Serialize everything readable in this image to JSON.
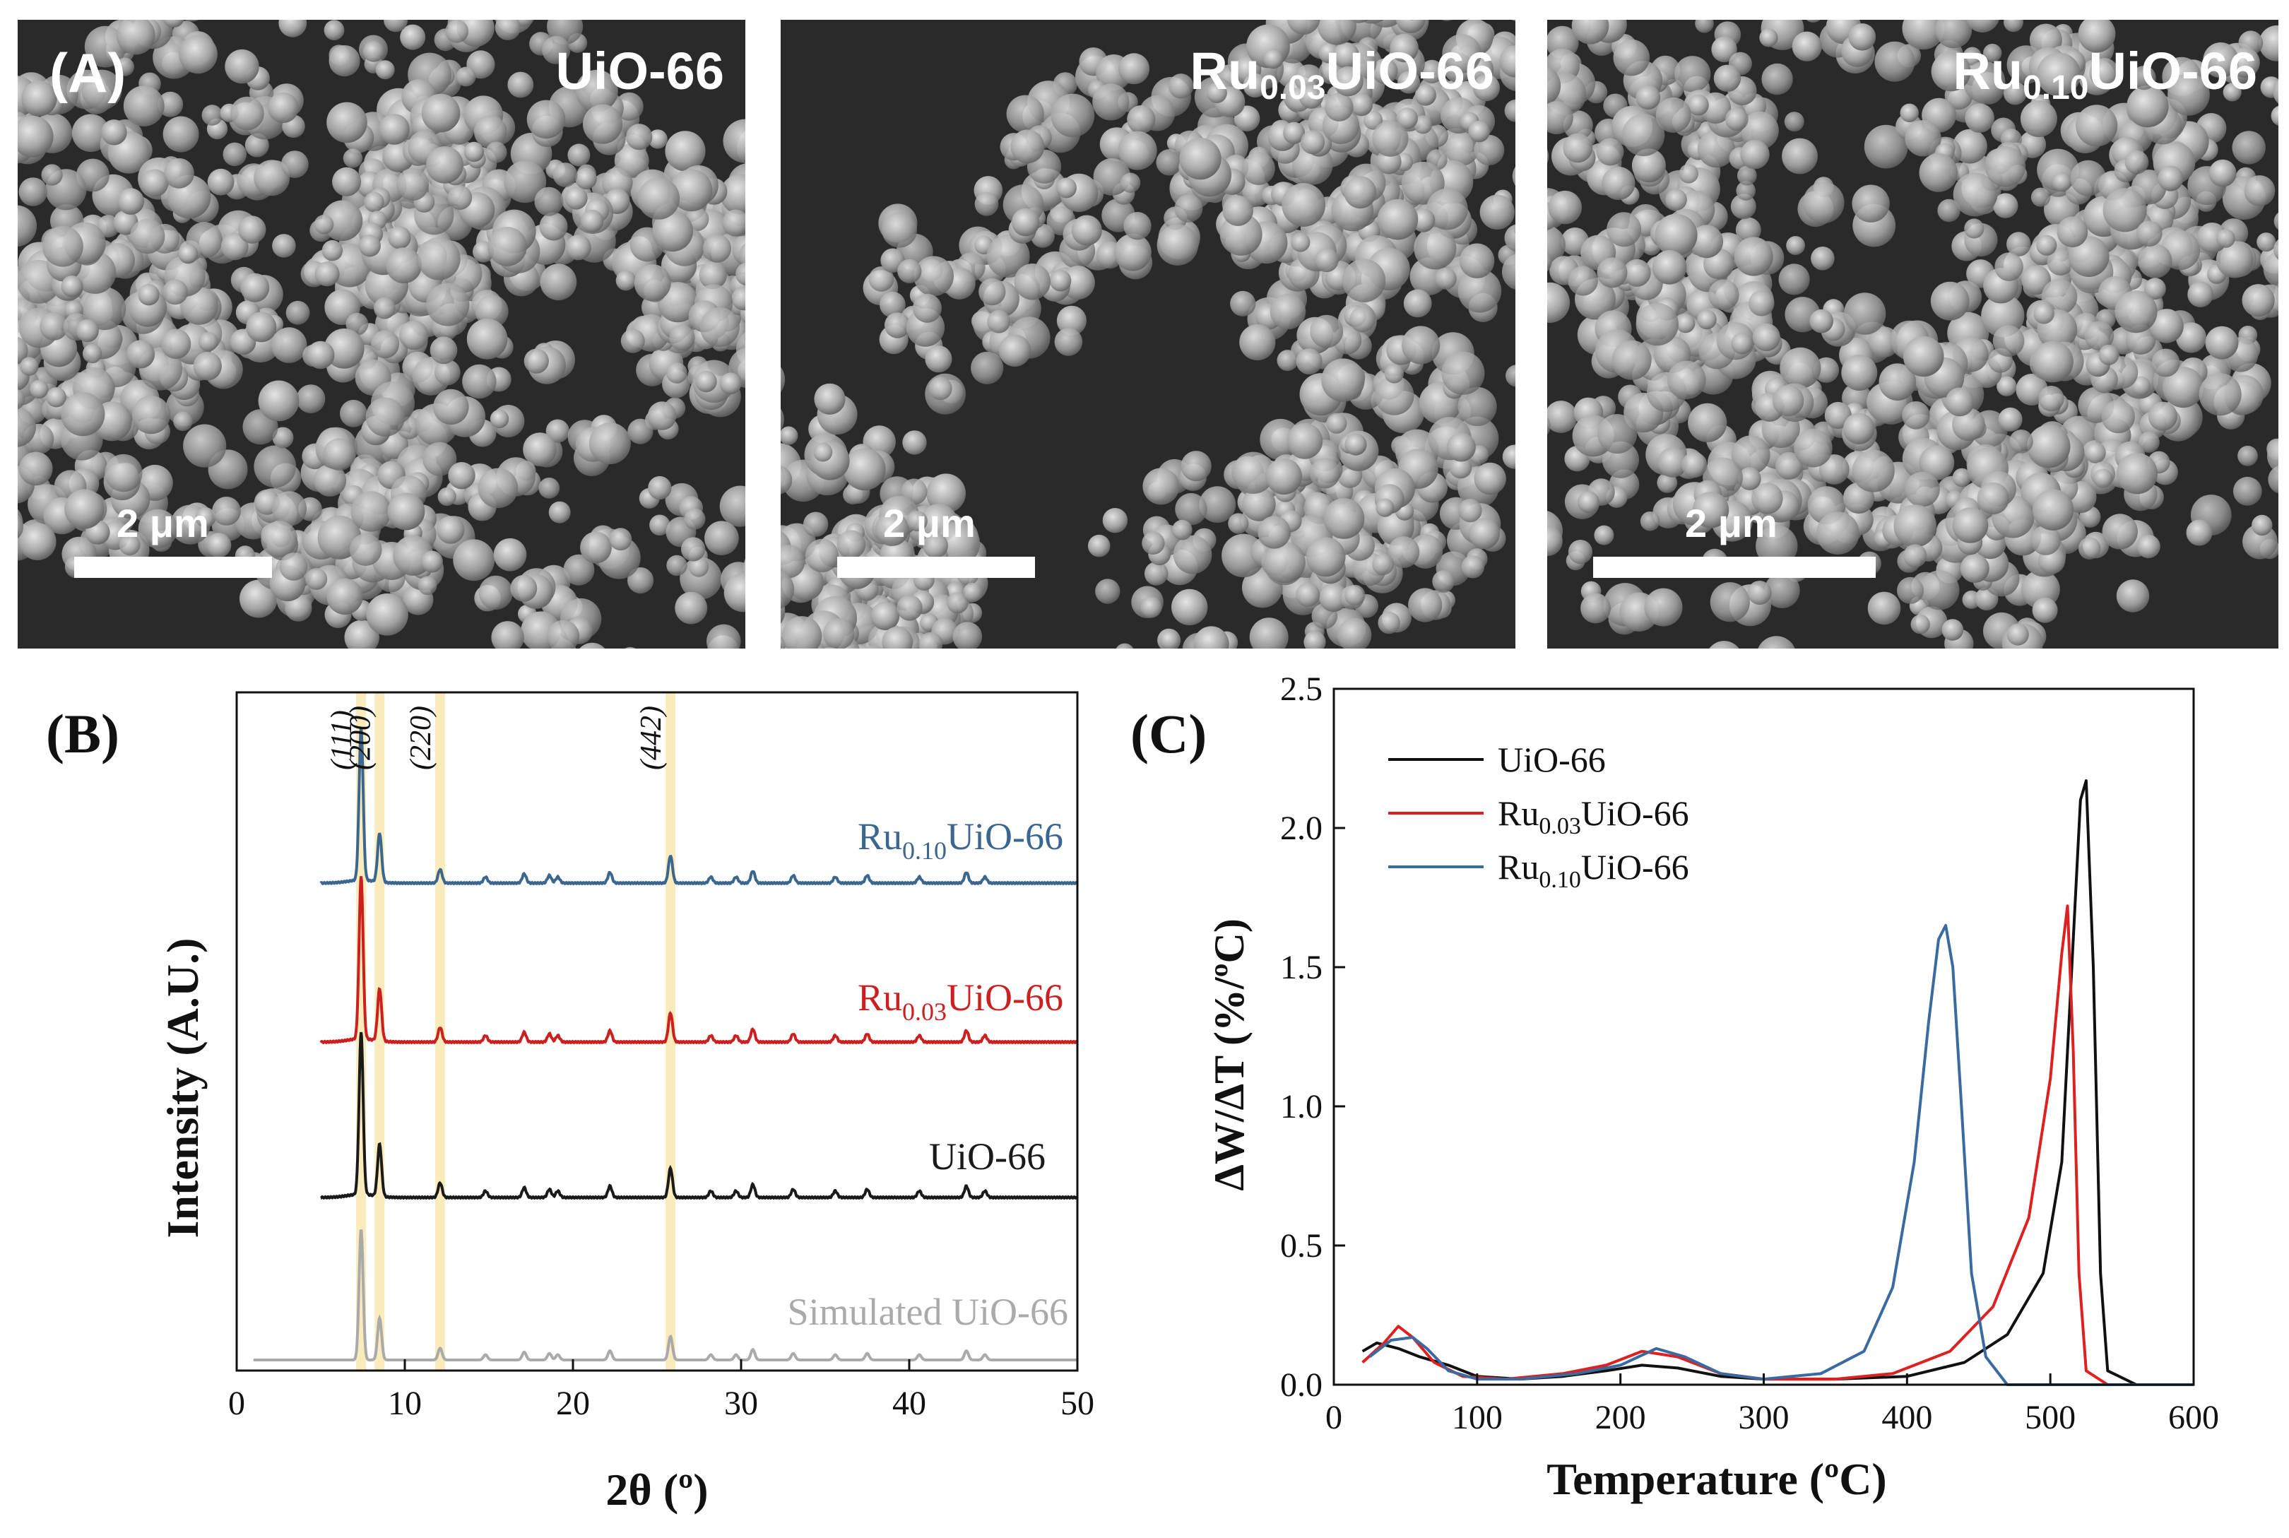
{
  "panel_a": {
    "letter": "(A)",
    "images": [
      {
        "title": "UiO-66",
        "title_sub": "",
        "title_suffix": "",
        "scale_label": "2 μm"
      },
      {
        "title": "Ru",
        "title_sub": "0.03",
        "title_suffix": "UiO-66",
        "scale_label": "2 μm"
      },
      {
        "title": "Ru",
        "title_sub": "0.10",
        "title_suffix": "UiO-66",
        "scale_label": "2 μm"
      }
    ]
  },
  "chart_data": [
    {
      "panel": "(B)",
      "type": "line",
      "xlabel": "2θ (º)",
      "ylabel": "Intensity (A.U.)",
      "xlim": [
        0,
        50
      ],
      "xticks": [
        0,
        10,
        20,
        30,
        40,
        50
      ],
      "reflections": [
        {
          "label": "(111)",
          "x": 7.4
        },
        {
          "label": "(200)",
          "x": 8.5
        },
        {
          "label": "(220)",
          "x": 12.1
        },
        {
          "label": "(442)",
          "x": 25.8
        }
      ],
      "series": [
        {
          "name": "Simulated UiO-66",
          "color": "#aaaaaa",
          "x_start": 1
        },
        {
          "name": "UiO-66",
          "color": "#1a1a1a",
          "x_start": 5
        },
        {
          "name": "Ru0.03UiO-66",
          "name_base": "Ru",
          "name_sub": "0.03",
          "name_suffix": "UiO-66",
          "color": "#cc1f1f",
          "x_start": 5
        },
        {
          "name": "Ru0.10UiO-66",
          "name_base": "Ru",
          "name_sub": "0.10",
          "name_suffix": "UiO-66",
          "color": "#3a6690",
          "x_start": 5
        }
      ],
      "peaks": [
        {
          "x": 7.4,
          "h": 1.0
        },
        {
          "x": 8.5,
          "h": 0.32
        },
        {
          "x": 12.1,
          "h": 0.09
        },
        {
          "x": 14.8,
          "h": 0.04
        },
        {
          "x": 17.1,
          "h": 0.06
        },
        {
          "x": 18.6,
          "h": 0.05
        },
        {
          "x": 19.1,
          "h": 0.04
        },
        {
          "x": 22.2,
          "h": 0.07
        },
        {
          "x": 25.8,
          "h": 0.18
        },
        {
          "x": 28.2,
          "h": 0.04
        },
        {
          "x": 29.7,
          "h": 0.04
        },
        {
          "x": 30.7,
          "h": 0.08
        },
        {
          "x": 33.1,
          "h": 0.05
        },
        {
          "x": 35.6,
          "h": 0.04
        },
        {
          "x": 37.5,
          "h": 0.05
        },
        {
          "x": 40.6,
          "h": 0.04
        },
        {
          "x": 43.4,
          "h": 0.07
        },
        {
          "x": 44.5,
          "h": 0.04
        }
      ]
    },
    {
      "panel": "(C)",
      "type": "line",
      "xlabel": "Temperature (ºC)",
      "ylabel": "ΔW/ΔT (%/ºC)",
      "xlim": [
        0,
        600
      ],
      "ylim": [
        0,
        2.5
      ],
      "xticks": [
        0,
        100,
        200,
        300,
        400,
        500,
        600
      ],
      "yticks": [
        "0.0",
        "0.5",
        "1.0",
        "1.5",
        "2.0",
        "2.5"
      ],
      "legend_position": "top-left",
      "series": [
        {
          "name": "UiO-66",
          "color": "#111111",
          "x": [
            20,
            30,
            45,
            60,
            80,
            100,
            130,
            160,
            190,
            215,
            240,
            270,
            300,
            350,
            400,
            440,
            470,
            495,
            508,
            515,
            521,
            525,
            530,
            535,
            540,
            560,
            600
          ],
          "y": [
            0.12,
            0.15,
            0.13,
            0.1,
            0.07,
            0.03,
            0.02,
            0.03,
            0.05,
            0.07,
            0.06,
            0.03,
            0.02,
            0.02,
            0.03,
            0.08,
            0.18,
            0.4,
            0.8,
            1.5,
            2.1,
            2.17,
            1.5,
            0.4,
            0.05,
            0.0,
            0.0
          ]
        },
        {
          "name": "Ru0.03UiO-66",
          "name_base": "Ru",
          "name_sub": "0.03",
          "name_suffix": "UiO-66",
          "color": "#dd2020",
          "x": [
            20,
            35,
            45,
            55,
            70,
            90,
            120,
            160,
            190,
            215,
            240,
            270,
            300,
            350,
            390,
            430,
            460,
            485,
            500,
            508,
            512,
            516,
            520,
            525,
            540,
            600
          ],
          "y": [
            0.08,
            0.15,
            0.21,
            0.17,
            0.08,
            0.03,
            0.02,
            0.04,
            0.07,
            0.12,
            0.1,
            0.04,
            0.02,
            0.02,
            0.04,
            0.12,
            0.28,
            0.6,
            1.1,
            1.55,
            1.72,
            1.2,
            0.4,
            0.05,
            0.0,
            0.0
          ]
        },
        {
          "name": "Ru0.10UiO-66",
          "name_base": "Ru",
          "name_sub": "0.10",
          "name_suffix": "UiO-66",
          "color": "#3a6aa0",
          "x": [
            25,
            40,
            55,
            65,
            80,
            100,
            130,
            170,
            200,
            225,
            245,
            270,
            300,
            340,
            370,
            390,
            405,
            415,
            422,
            427,
            432,
            438,
            445,
            455,
            470,
            600
          ],
          "y": [
            0.1,
            0.16,
            0.17,
            0.13,
            0.05,
            0.02,
            0.02,
            0.04,
            0.07,
            0.13,
            0.1,
            0.04,
            0.02,
            0.04,
            0.12,
            0.35,
            0.8,
            1.3,
            1.6,
            1.65,
            1.5,
            1.0,
            0.4,
            0.1,
            0.0,
            0.0
          ]
        }
      ]
    }
  ]
}
